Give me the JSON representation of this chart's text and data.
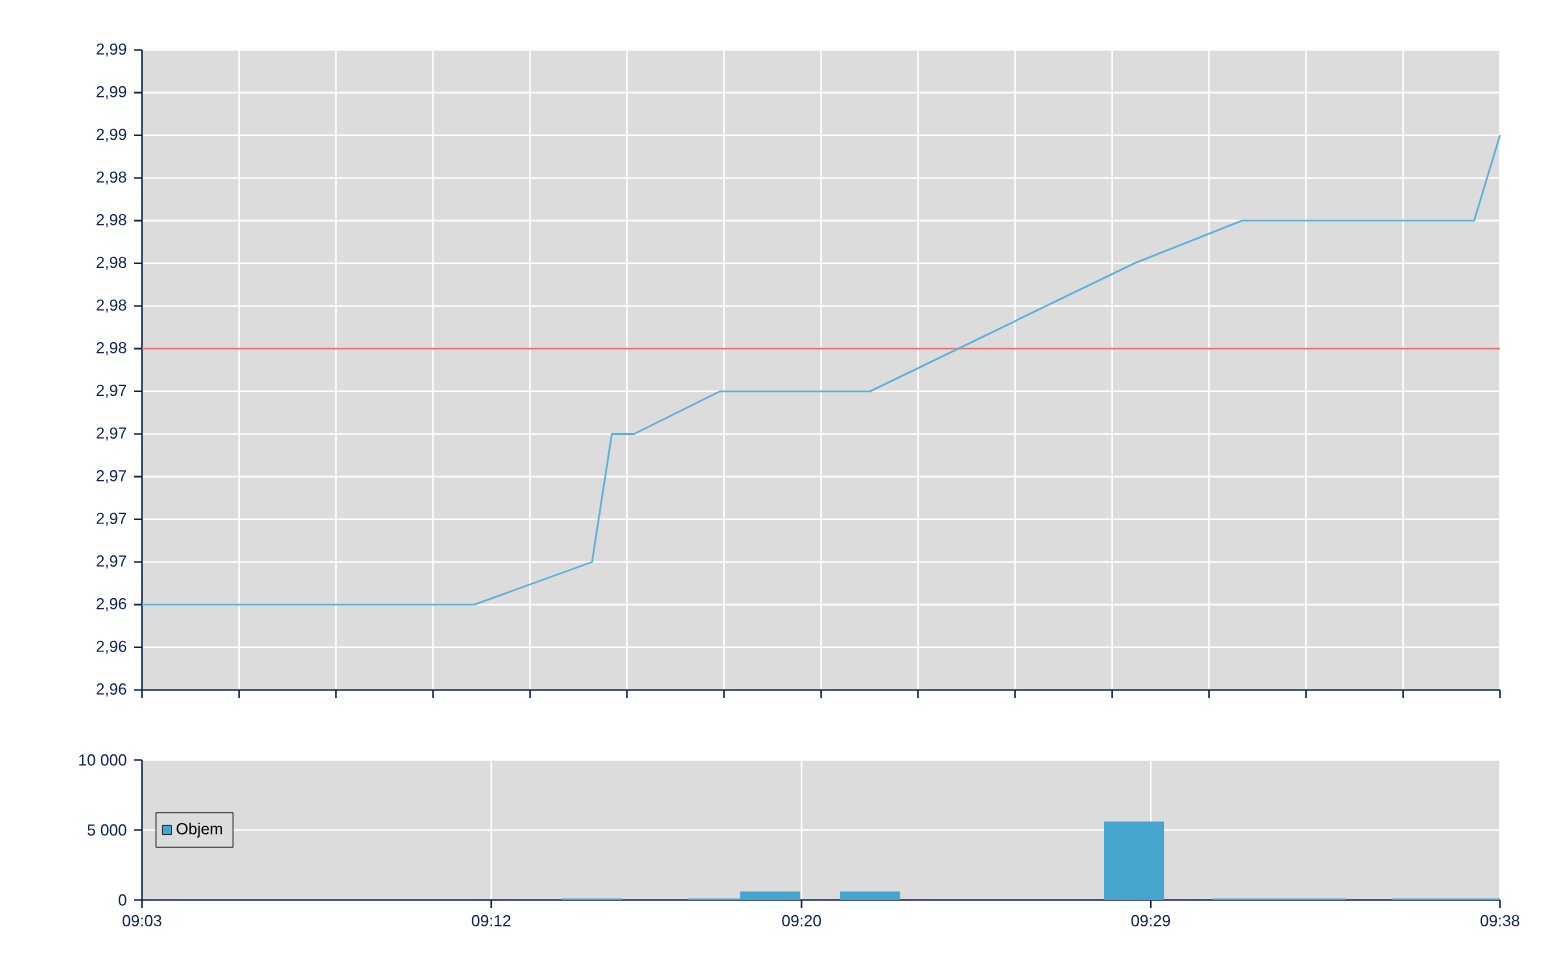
{
  "chart_data": [
    {
      "type": "line",
      "color": "#5ab0d8",
      "x": [
        9.05,
        9.1927,
        9.2433,
        9.2518,
        9.2613,
        9.2983,
        9.3627,
        9.4762,
        9.5225,
        9.6222,
        9.6333
      ],
      "values": [
        2.964,
        2.964,
        2.966,
        2.972,
        2.972,
        2.974,
        2.974,
        2.98,
        2.982,
        2.982,
        2.986
      ],
      "xlim": [
        9.05,
        9.6333
      ],
      "xticks": [
        {
          "value": 9.05,
          "label": null
        },
        {
          "value": 9.0917,
          "label": null
        },
        {
          "value": 9.1333,
          "label": null
        },
        {
          "value": 9.175,
          "label": null
        },
        {
          "value": 9.2167,
          "label": null
        },
        {
          "value": 9.2583,
          "label": null
        },
        {
          "value": 9.3,
          "label": null
        },
        {
          "value": 9.3417,
          "label": null
        },
        {
          "value": 9.3833,
          "label": null
        },
        {
          "value": 9.425,
          "label": null
        },
        {
          "value": 9.4667,
          "label": null
        },
        {
          "value": 9.5083,
          "label": null
        },
        {
          "value": 9.55,
          "label": null
        },
        {
          "value": 9.5917,
          "label": null
        },
        {
          "value": 9.6333,
          "label": null
        }
      ],
      "ylim": [
        2.96,
        2.99
      ],
      "yticks": [
        {
          "value": 2.96,
          "label": "2,96"
        },
        {
          "value": 2.962,
          "label": "2,96"
        },
        {
          "value": 2.964,
          "label": "2,96"
        },
        {
          "value": 2.966,
          "label": "2,97"
        },
        {
          "value": 2.968,
          "label": "2,97"
        },
        {
          "value": 2.97,
          "label": "2,97"
        },
        {
          "value": 2.972,
          "label": "2,97"
        },
        {
          "value": 2.974,
          "label": "2,97"
        },
        {
          "value": 2.976,
          "label": "2,98"
        },
        {
          "value": 2.978,
          "label": "2,98"
        },
        {
          "value": 2.98,
          "label": "2,98"
        },
        {
          "value": 2.982,
          "label": "2,98"
        },
        {
          "value": 2.984,
          "label": "2,98"
        },
        {
          "value": 2.986,
          "label": "2,99"
        },
        {
          "value": 2.988,
          "label": "2,99"
        },
        {
          "value": 2.99,
          "label": "2,99"
        }
      ],
      "tick_labels": "y",
      "grid": true,
      "ref_lines": [
        {
          "axis": "y",
          "value": 2.976,
          "color": "#e8706c"
        }
      ]
    },
    {
      "type": "histogram",
      "bins": [
        9.2304,
        9.2562,
        9.2845,
        9.3069,
        9.3327,
        9.3498,
        9.3756,
        9.4632,
        9.489,
        9.5097,
        9.5672,
        9.587,
        9.6333
      ],
      "series": [
        {
          "name": "Objem",
          "color": "#45a5cf",
          "values": [
            100,
            0,
            100,
            600,
            0,
            600,
            0,
            5600,
            0,
            100,
            0,
            100
          ]
        }
      ],
      "xlim": [
        9.05,
        9.6333
      ],
      "xticks": [
        {
          "value": 9.05,
          "label": "09:03"
        },
        {
          "value": 9.2,
          "label": "09:12"
        },
        {
          "value": 9.3333,
          "label": "09:20"
        },
        {
          "value": 9.4833,
          "label": "09:29"
        },
        {
          "value": 9.6333,
          "label": "09:38"
        }
      ],
      "ylim": [
        0,
        10000
      ],
      "yticks": [
        {
          "value": 0,
          "label": "0"
        },
        {
          "value": 5000,
          "label": "5 000"
        },
        {
          "value": 10000,
          "label": "10 000"
        }
      ],
      "grid": true,
      "legend": "left"
    }
  ]
}
